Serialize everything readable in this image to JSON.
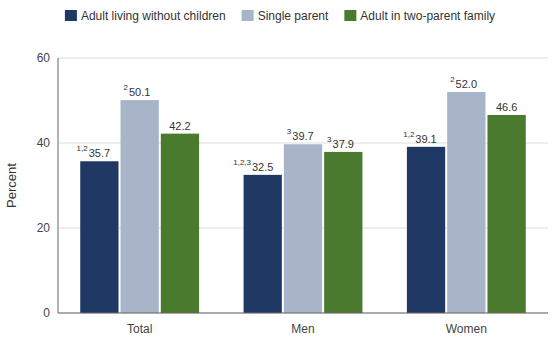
{
  "chart_data": {
    "type": "bar",
    "categories": [
      "Total",
      "Men",
      "Women"
    ],
    "series": [
      {
        "name": "Adult living without children",
        "color": "#1f3864",
        "values": [
          35.7,
          32.5,
          39.1
        ],
        "value_labels": [
          "35.7",
          "32.5",
          "39.1"
        ],
        "superscripts": [
          "1,2",
          "1,2,3",
          "1,2"
        ]
      },
      {
        "name": "Single parent",
        "color": "#a8b4c8",
        "values": [
          50.1,
          39.7,
          52.0
        ],
        "value_labels": [
          "50.1",
          "39.7",
          "52.0"
        ],
        "superscripts": [
          "2",
          "3",
          "2"
        ]
      },
      {
        "name": "Adult in two-parent family",
        "color": "#4a7a2e",
        "values": [
          42.2,
          37.9,
          46.6
        ],
        "value_labels": [
          "42.2",
          "37.9",
          "46.6"
        ],
        "superscripts": [
          null,
          "3",
          null
        ]
      }
    ],
    "ylabel": "Percent",
    "ylim": [
      0,
      60
    ],
    "yticks": [
      0,
      20,
      40,
      60
    ],
    "grid": true,
    "legend": "top",
    "data_labels": true
  }
}
